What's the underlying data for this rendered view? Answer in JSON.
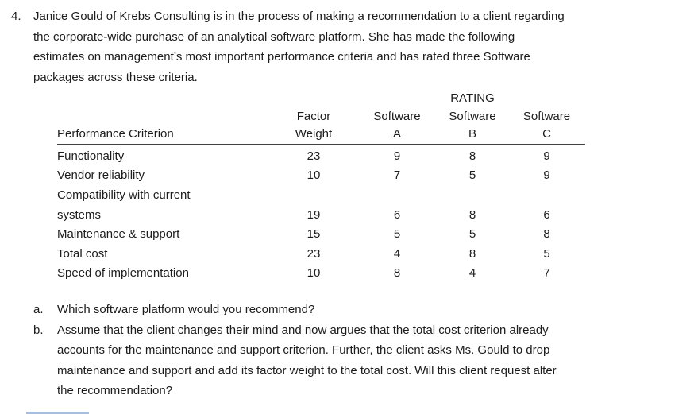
{
  "problem": {
    "number": "4.",
    "statement": "Janice Gould of Krebs Consulting is in the process of making a recommendation to a client regarding\nthe corporate-wide purchase of an analytical software platform. She has made the following\nestimates on management’s most important performance criteria and has rated three Software\npackages across these criteria."
  },
  "table": {
    "super_header": "RATING",
    "col_headers": [
      {
        "line1": "",
        "line2": "Performance Criterion"
      },
      {
        "line1": "Factor",
        "line2": "Weight"
      },
      {
        "line1": "Software",
        "line2": "A"
      },
      {
        "line1": "Software",
        "line2": "B"
      },
      {
        "line1": "Software",
        "line2": "C"
      }
    ],
    "rows": [
      {
        "criterion": "Functionality",
        "weight": "23",
        "a": "9",
        "b": "8",
        "c": "9"
      },
      {
        "criterion": "Vendor reliability",
        "weight": "10",
        "a": "7",
        "b": "5",
        "c": "9"
      },
      {
        "criterion": "Compatibility with current\nsystems",
        "weight": "19",
        "a": "6",
        "b": "8",
        "c": "6"
      },
      {
        "criterion": "Maintenance & support",
        "weight": "15",
        "a": "5",
        "b": "5",
        "c": "8"
      },
      {
        "criterion": "Total cost",
        "weight": "23",
        "a": "4",
        "b": "8",
        "c": "5"
      },
      {
        "criterion": "Speed of implementation",
        "weight": "10",
        "a": "8",
        "b": "4",
        "c": "7"
      }
    ]
  },
  "questions": [
    {
      "label": "a.",
      "text": "Which software platform would you recommend?"
    },
    {
      "label": "b.",
      "text": "Assume that the client changes their mind and now argues that the total cost criterion already\naccounts for the maintenance and support criterion. Further, the client asks Ms. Gould to drop\nmaintenance and support and add its factor weight to the total cost. Will this client request alter\nthe recommendation?"
    }
  ]
}
